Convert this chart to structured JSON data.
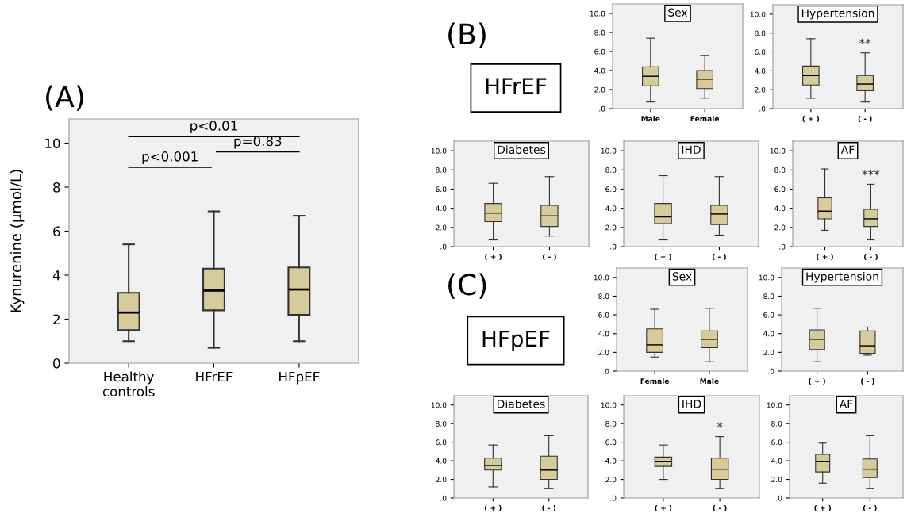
{
  "chart_data": [
    {
      "type": "box",
      "title": "(A)",
      "ylabel": "Kynurenine (μmol/L)",
      "categories": [
        "Healthy\ncontrols",
        "HFrEF",
        "HFpEF"
      ],
      "ylim": [
        0,
        11.1
      ],
      "yticks": [
        0,
        2,
        4,
        6,
        8,
        10
      ],
      "grid": false,
      "annotations": [
        "p<0.001",
        "p=0.83",
        "p<0.01"
      ],
      "series": [
        {
          "color": "#d5cc9a",
          "boxes": [
            {
              "low": 1.0,
              "q1": 1.5,
              "median": 2.3,
              "q3": 3.2,
              "high": 5.4
            },
            {
              "low": 0.7,
              "q1": 2.4,
              "median": 3.3,
              "q3": 4.3,
              "high": 6.9
            },
            {
              "low": 1.0,
              "q1": 2.2,
              "median": 3.35,
              "q3": 4.35,
              "high": 6.7
            }
          ]
        }
      ]
    },
    {
      "type": "other",
      "annotations": [
        "(B)",
        "HFrEF"
      ]
    },
    {
      "type": "box",
      "title": "Sex",
      "categories": [
        "Male",
        "Female"
      ],
      "ylim": [
        0,
        11
      ],
      "yticks": [
        {
          "value": 0,
          "label": ".0"
        },
        {
          "value": 2,
          "label": "2.0"
        },
        {
          "value": 4,
          "label": "4.0"
        },
        {
          "value": 6,
          "label": "6.0"
        },
        {
          "value": 8,
          "label": "8.0"
        },
        {
          "value": 10,
          "label": "10.0"
        }
      ],
      "grid": false,
      "series": [
        {
          "color": "#d5cc9a",
          "boxes": [
            {
              "low": 0.7,
              "q1": 2.4,
              "median": 3.4,
              "q3": 4.4,
              "high": 7.4
            },
            {
              "low": 1.1,
              "q1": 2.1,
              "median": 3.1,
              "q3": 4.0,
              "high": 5.6
            }
          ]
        }
      ]
    },
    {
      "type": "box",
      "title": "Hypertension",
      "categories": [
        "( + )",
        "( - )"
      ],
      "ylim": [
        0,
        11
      ],
      "yticks": [
        {
          "value": 0,
          "label": ".0"
        },
        {
          "value": 2,
          "label": "2.0"
        },
        {
          "value": 4,
          "label": "4.0"
        },
        {
          "value": 6,
          "label": "6.0"
        },
        {
          "value": 8,
          "label": "8.0"
        },
        {
          "value": 10,
          "label": "10.0"
        }
      ],
      "grid": false,
      "annotations": [
        "**"
      ],
      "series": [
        {
          "color": "#d5cc9a",
          "boxes": [
            {
              "low": 1.1,
              "q1": 2.5,
              "median": 3.5,
              "q3": 4.5,
              "high": 7.4
            },
            {
              "low": 0.7,
              "q1": 1.9,
              "median": 2.6,
              "q3": 3.5,
              "high": 5.9
            }
          ]
        }
      ]
    },
    {
      "type": "box",
      "title": "Diabetes",
      "categories": [
        "( + )",
        "( - )"
      ],
      "ylim": [
        0,
        11
      ],
      "yticks": [
        {
          "value": 0,
          "label": ".0"
        },
        {
          "value": 2,
          "label": "2.0"
        },
        {
          "value": 4,
          "label": "4.0"
        },
        {
          "value": 6,
          "label": "6.0"
        },
        {
          "value": 8,
          "label": "8.0"
        },
        {
          "value": 10,
          "label": "10.0"
        }
      ],
      "grid": false,
      "series": [
        {
          "color": "#d5cc9a",
          "boxes": [
            {
              "low": 0.7,
              "q1": 2.6,
              "median": 3.5,
              "q3": 4.5,
              "high": 6.6
            },
            {
              "low": 1.1,
              "q1": 2.1,
              "median": 3.2,
              "q3": 4.3,
              "high": 7.3
            }
          ]
        }
      ]
    },
    {
      "type": "box",
      "title": "IHD",
      "categories": [
        "( + )",
        "( - )"
      ],
      "ylim": [
        0,
        11
      ],
      "yticks": [
        {
          "value": 0,
          "label": ".0"
        },
        {
          "value": 2,
          "label": "2.0"
        },
        {
          "value": 4,
          "label": "4.0"
        },
        {
          "value": 6,
          "label": "6.0"
        },
        {
          "value": 8,
          "label": "8.0"
        },
        {
          "value": 10,
          "label": "10.0"
        }
      ],
      "grid": false,
      "series": [
        {
          "color": "#d5cc9a",
          "boxes": [
            {
              "low": 0.7,
              "q1": 2.4,
              "median": 3.1,
              "q3": 4.5,
              "high": 7.4
            },
            {
              "low": 1.2,
              "q1": 2.3,
              "median": 3.4,
              "q3": 4.3,
              "high": 7.3
            }
          ]
        }
      ]
    },
    {
      "type": "box",
      "title": "AF",
      "categories": [
        "( + )",
        "( - )"
      ],
      "ylim": [
        0,
        11
      ],
      "yticks": [
        {
          "value": 0,
          "label": ".0"
        },
        {
          "value": 2,
          "label": "2.0"
        },
        {
          "value": 4,
          "label": "4.0"
        },
        {
          "value": 6,
          "label": "6.0"
        },
        {
          "value": 8,
          "label": "8.0"
        },
        {
          "value": 10,
          "label": "10.0"
        }
      ],
      "grid": false,
      "annotations": [
        "***"
      ],
      "series": [
        {
          "color": "#d5cc9a",
          "boxes": [
            {
              "low": 1.7,
              "q1": 2.9,
              "median": 3.7,
              "q3": 5.1,
              "high": 8.1
            },
            {
              "low": 0.7,
              "q1": 2.1,
              "median": 2.9,
              "q3": 3.9,
              "high": 6.5
            }
          ]
        }
      ]
    },
    {
      "type": "other",
      "annotations": [
        "(C)",
        "HFpEF"
      ]
    },
    {
      "type": "box",
      "title": "Sex",
      "categories": [
        "Female",
        "Male"
      ],
      "ylim": [
        0,
        11
      ],
      "yticks": [
        {
          "value": 0,
          "label": ".0"
        },
        {
          "value": 2,
          "label": "2.0"
        },
        {
          "value": 4,
          "label": "4.0"
        },
        {
          "value": 6,
          "label": "6.0"
        },
        {
          "value": 8,
          "label": "8.0"
        },
        {
          "value": 10,
          "label": "10.0"
        }
      ],
      "grid": false,
      "series": [
        {
          "color": "#d5cc9a",
          "boxes": [
            {
              "low": 1.5,
              "q1": 2.0,
              "median": 2.8,
              "q3": 4.5,
              "high": 6.6
            },
            {
              "low": 1.0,
              "q1": 2.5,
              "median": 3.4,
              "q3": 4.3,
              "high": 6.7
            }
          ]
        }
      ]
    },
    {
      "type": "box",
      "title": "Hypertension",
      "categories": [
        "( + )",
        "( - )"
      ],
      "ylim": [
        0,
        11
      ],
      "yticks": [
        {
          "value": 0,
          "label": ".0"
        },
        {
          "value": 2,
          "label": "2.0"
        },
        {
          "value": 4,
          "label": "4.0"
        },
        {
          "value": 6,
          "label": "6.0"
        },
        {
          "value": 8,
          "label": "8.0"
        },
        {
          "value": 10,
          "label": "10.0"
        }
      ],
      "grid": false,
      "series": [
        {
          "color": "#d5cc9a",
          "boxes": [
            {
              "low": 1.0,
              "q1": 2.3,
              "median": 3.4,
              "q3": 4.4,
              "high": 6.7
            },
            {
              "low": 1.7,
              "q1": 1.9,
              "median": 2.7,
              "q3": 4.3,
              "high": 4.7
            }
          ]
        }
      ]
    },
    {
      "type": "box",
      "title": "Diabetes",
      "categories": [
        "( + )",
        "( - )"
      ],
      "ylim": [
        0,
        11
      ],
      "yticks": [
        {
          "value": 0,
          "label": ".0"
        },
        {
          "value": 2,
          "label": "2.0"
        },
        {
          "value": 4,
          "label": "4.0"
        },
        {
          "value": 6,
          "label": "6.0"
        },
        {
          "value": 8,
          "label": "8.0"
        },
        {
          "value": 10,
          "label": "10.0"
        }
      ],
      "grid": false,
      "series": [
        {
          "color": "#d5cc9a",
          "boxes": [
            {
              "low": 1.2,
              "q1": 3.0,
              "median": 3.5,
              "q3": 4.3,
              "high": 5.7
            },
            {
              "low": 1.0,
              "q1": 2.0,
              "median": 3.0,
              "q3": 4.5,
              "high": 6.7
            }
          ]
        }
      ]
    },
    {
      "type": "box",
      "title": "IHD",
      "categories": [
        "( + )",
        "( - )"
      ],
      "ylim": [
        0,
        11
      ],
      "yticks": [
        {
          "value": 0,
          "label": ".0"
        },
        {
          "value": 2,
          "label": "2.0"
        },
        {
          "value": 4,
          "label": "4.0"
        },
        {
          "value": 6,
          "label": "6.0"
        },
        {
          "value": 8,
          "label": "8.0"
        },
        {
          "value": 10,
          "label": "10.0"
        }
      ],
      "grid": false,
      "annotations": [
        "*"
      ],
      "series": [
        {
          "color": "#d5cc9a",
          "boxes": [
            {
              "low": 2.0,
              "q1": 3.4,
              "median": 3.9,
              "q3": 4.4,
              "high": 5.7
            },
            {
              "low": 1.0,
              "q1": 2.0,
              "median": 3.1,
              "q3": 4.3,
              "high": 6.6
            }
          ]
        }
      ]
    },
    {
      "type": "box",
      "title": "AF",
      "categories": [
        "( + )",
        "( - )"
      ],
      "ylim": [
        0,
        11
      ],
      "yticks": [
        {
          "value": 0,
          "label": ".0"
        },
        {
          "value": 2,
          "label": "2.0"
        },
        {
          "value": 4,
          "label": "4.0"
        },
        {
          "value": 6,
          "label": "6.0"
        },
        {
          "value": 8,
          "label": "8.0"
        },
        {
          "value": 10,
          "label": "10.0"
        }
      ],
      "grid": false,
      "series": [
        {
          "color": "#d5cc9a",
          "boxes": [
            {
              "low": 1.6,
              "q1": 2.8,
              "median": 3.9,
              "q3": 4.7,
              "high": 5.9
            },
            {
              "low": 1.0,
              "q1": 2.2,
              "median": 3.1,
              "q3": 4.2,
              "high": 6.7
            }
          ]
        }
      ]
    }
  ]
}
